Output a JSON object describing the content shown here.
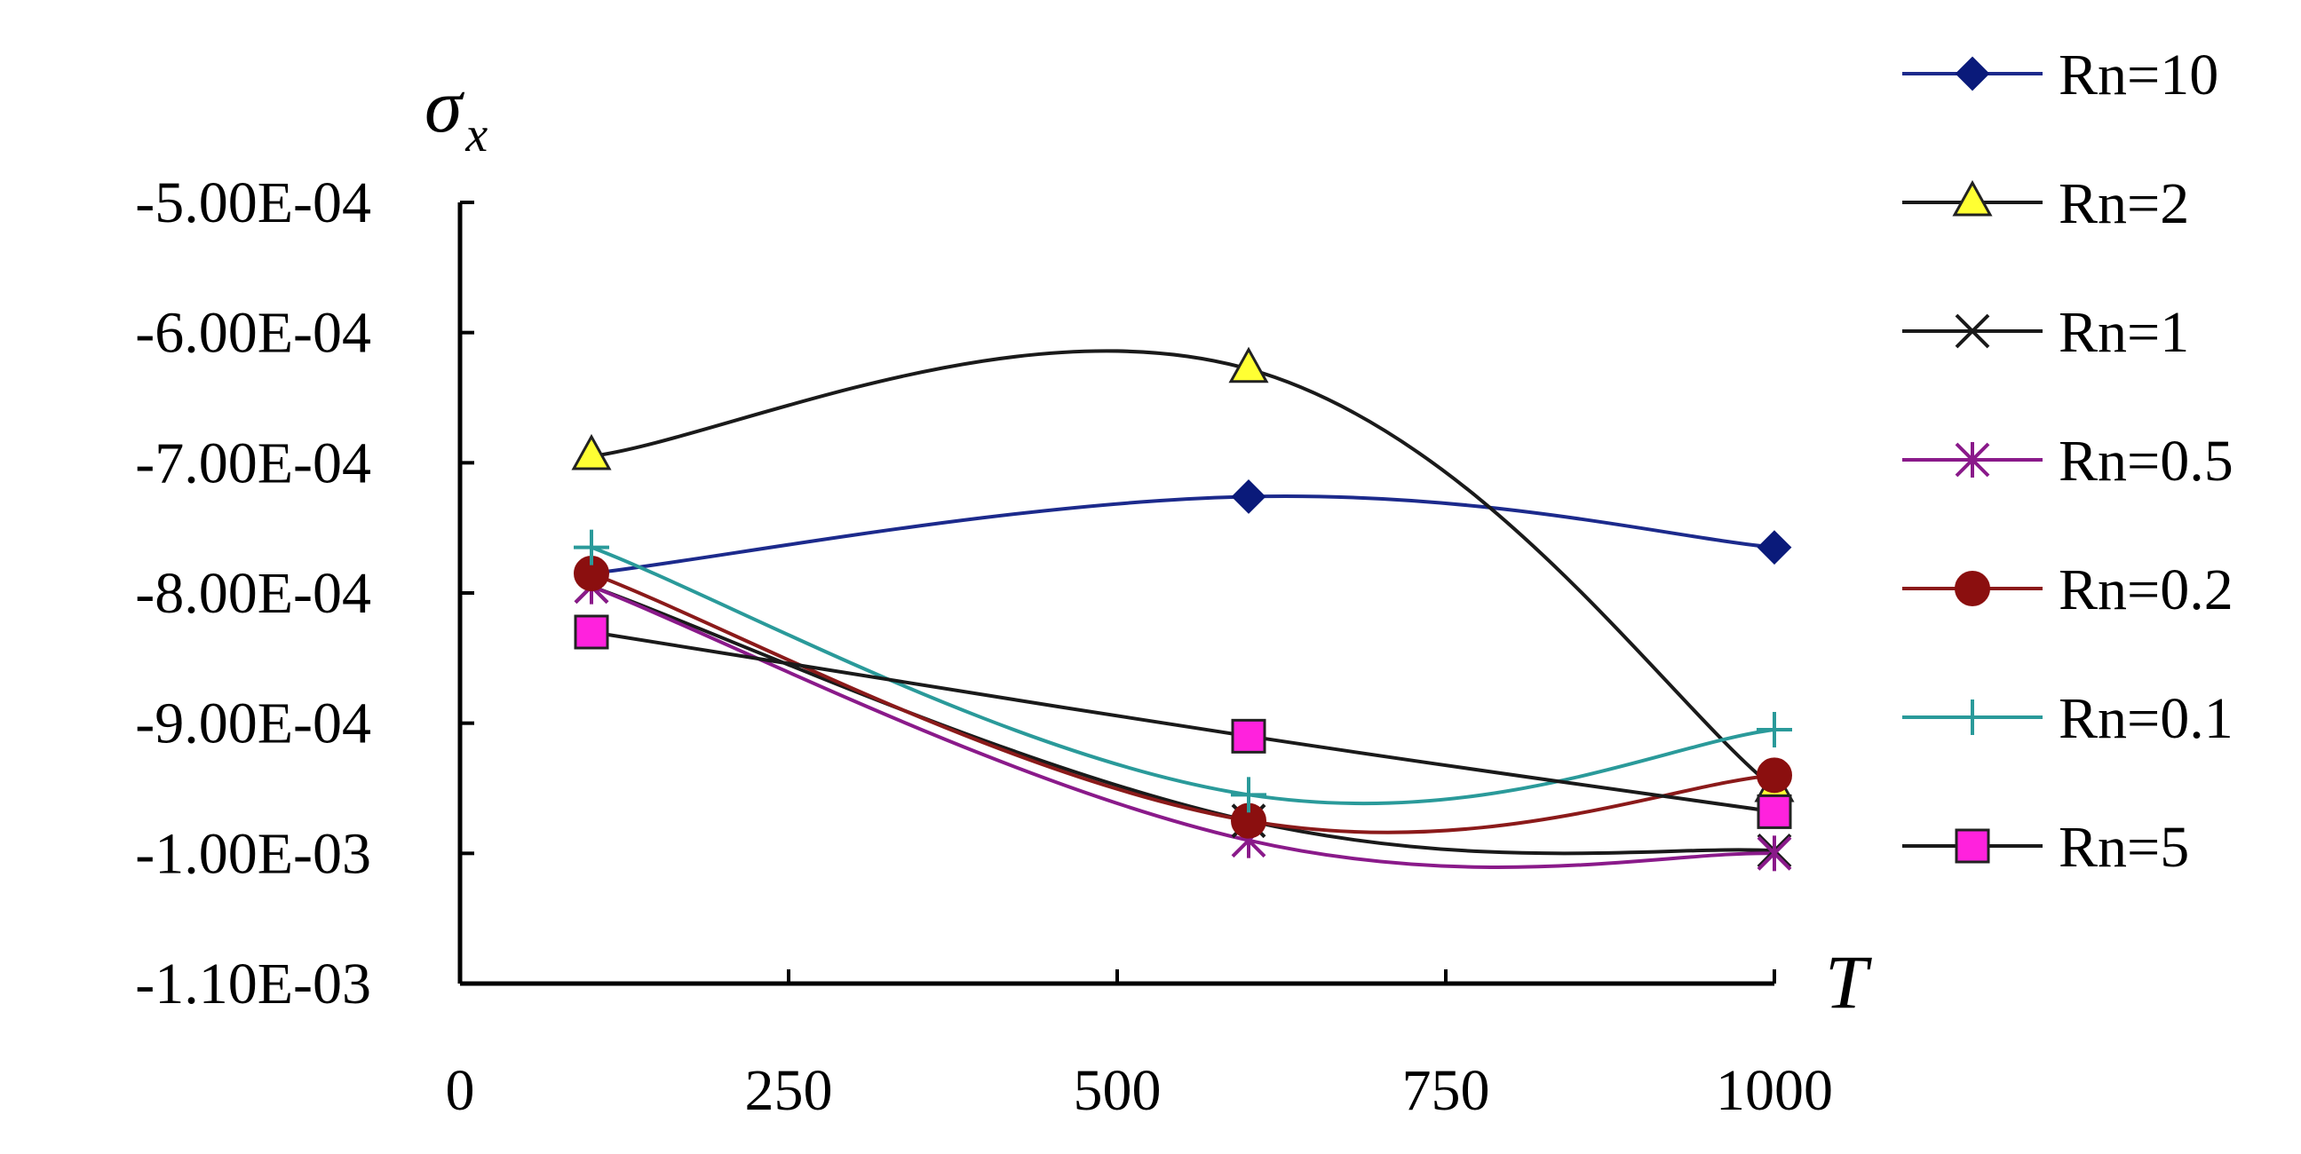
{
  "chart_data": {
    "type": "line",
    "title": "",
    "ylabel": "σ",
    "ylabel_subscript": "x",
    "xlabel": "T",
    "x_ticks": [
      "0",
      "250",
      "500",
      "750",
      "1000"
    ],
    "y_ticks": [
      "-5.00E-04",
      "-6.00E-04",
      "-7.00E-04",
      "-8.00E-04",
      "-9.00E-04",
      "-1.00E-03",
      "-1.10E-03"
    ],
    "xlim": [
      0,
      1000
    ],
    "ylim": [
      -0.0011,
      -0.0005
    ],
    "grid": false,
    "legend_position": "right",
    "x": [
      100,
      600,
      1000
    ],
    "series": [
      {
        "name": "Rn=10",
        "marker": "diamond",
        "color": "#1c2a8c",
        "fill": "#0a1a7a",
        "values": [
          -0.000785,
          -0.000726,
          -0.000765
        ]
      },
      {
        "name": "Rn=2",
        "marker": "triangle",
        "color": "#1a1a1a",
        "fill": "#ffff33",
        "values": [
          -0.000695,
          -0.000628,
          -0.00095
        ]
      },
      {
        "name": "Rn=1",
        "marker": "x",
        "color": "#1a1a1a",
        "fill": "#1a1a1a",
        "values": [
          -0.000795,
          -0.000975,
          -0.000998
        ]
      },
      {
        "name": "Rn=0.5",
        "marker": "star",
        "color": "#8a1a8a",
        "fill": "#8a1a8a",
        "values": [
          -0.000795,
          -0.00099,
          -0.001
        ]
      },
      {
        "name": "Rn=0.2",
        "marker": "circle",
        "color": "#8b1a1a",
        "fill": "#8b0f0f",
        "values": [
          -0.000785,
          -0.000975,
          -0.00094
        ]
      },
      {
        "name": "Rn=0.1",
        "marker": "plus",
        "color": "#2a9a9a",
        "fill": "#2a9a9a",
        "values": [
          -0.000765,
          -0.000955,
          -0.000905
        ]
      },
      {
        "name": "Rn=5",
        "marker": "square",
        "color": "#1a1a1a",
        "fill": "#ff22dd",
        "values": [
          -0.00083,
          -0.00091,
          -0.000968
        ]
      }
    ]
  }
}
